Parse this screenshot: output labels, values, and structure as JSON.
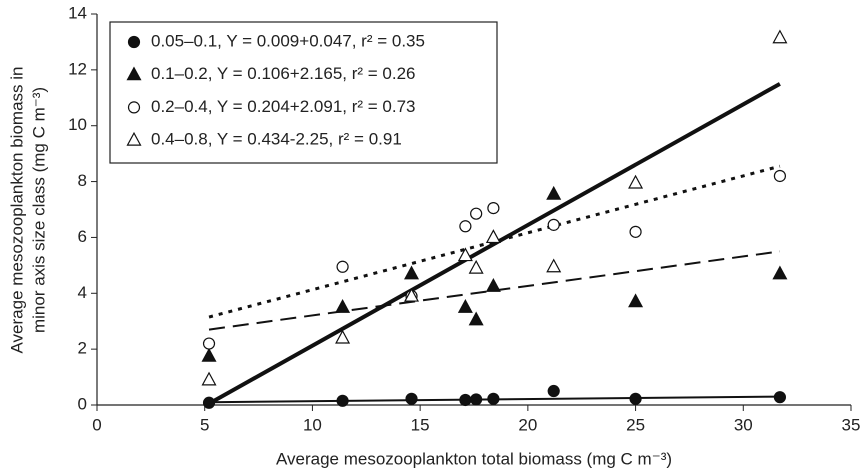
{
  "chart_data": {
    "type": "scatter",
    "xlabel": "Average mesozooplankton total biomass (mg C m⁻³)",
    "ylabel": [
      "Average mesozooplankton biomass in",
      "minor axis size class (mg C m⁻³)"
    ],
    "xlim": [
      0,
      35
    ],
    "xticks": [
      0,
      5,
      10,
      15,
      20,
      25,
      30,
      35
    ],
    "ylim": [
      0,
      14
    ],
    "yticks": [
      0,
      2,
      4,
      6,
      8,
      10,
      12,
      14
    ],
    "legend": "upper-left",
    "series": [
      {
        "name": "0.05–0.1, Y = 0.009+0.047, r² = 0.35",
        "color": "#111",
        "marker": "circle",
        "filled": true,
        "line_style": "thin",
        "x": [
          5.2,
          11.4,
          14.6,
          17.1,
          17.6,
          18.4,
          21.2,
          25,
          31.7
        ],
        "values": [
          0.08,
          0.15,
          0.22,
          0.18,
          0.2,
          0.22,
          0.5,
          0.22,
          0.28
        ],
        "fit": {
          "x": [
            5.2,
            31.7
          ],
          "values": [
            0.1,
            0.3
          ]
        }
      },
      {
        "name": "0.1–0.2, Y = 0.106+2.165, r² = 0.26",
        "color": "#111",
        "marker": "triangle",
        "filled": true,
        "line_style": "dashed",
        "x": [
          5.2,
          11.4,
          14.6,
          17.1,
          17.6,
          18.4,
          21.2,
          25,
          31.7
        ],
        "values": [
          1.75,
          3.5,
          4.7,
          3.5,
          3.05,
          4.25,
          7.55,
          3.7,
          4.7
        ],
        "fit": {
          "x": [
            5.2,
            31.7
          ],
          "values": [
            2.7,
            5.5
          ]
        }
      },
      {
        "name": "0.2–0.4, Y = 0.204+2.091, r² = 0.73",
        "color": "#111",
        "marker": "circle",
        "filled": false,
        "line_style": "dotted",
        "x": [
          5.2,
          11.4,
          14.6,
          17.1,
          17.6,
          18.4,
          21.2,
          25,
          31.7
        ],
        "values": [
          2.2,
          4.95,
          3.9,
          6.4,
          6.85,
          7.05,
          6.45,
          6.2,
          8.2
        ],
        "fit": {
          "x": [
            5.2,
            31.7
          ],
          "values": [
            3.15,
            8.55
          ]
        }
      },
      {
        "name": "0.4–0.8, Y = 0.434-2.25, r² = 0.91",
        "color": "#111",
        "marker": "triangle",
        "filled": false,
        "line_style": "bold",
        "x": [
          5.2,
          11.4,
          14.6,
          17.1,
          17.6,
          18.4,
          21.2,
          25,
          31.7
        ],
        "values": [
          0.9,
          2.4,
          3.9,
          5.35,
          4.9,
          6.0,
          4.95,
          7.95,
          13.15
        ],
        "fit": {
          "x": [
            5.2,
            31.7
          ],
          "values": [
            0.05,
            11.5
          ]
        }
      }
    ]
  }
}
